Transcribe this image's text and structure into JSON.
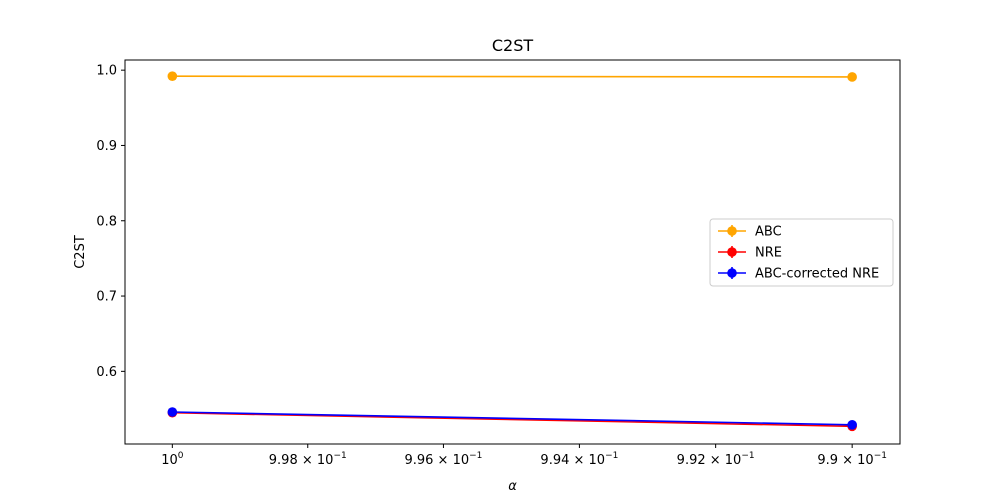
{
  "chart_data": {
    "type": "line",
    "title": "C2ST",
    "xlabel": "α",
    "ylabel": "C2ST",
    "x_scale": "log-reversed",
    "x": [
      1.0,
      0.99
    ],
    "xlim": [
      1.0007,
      0.9893
    ],
    "ylim": [
      0.5035,
      1.0135
    ],
    "x_ticks": [
      {
        "value": 1.0,
        "base": "10",
        "exp": "0"
      },
      {
        "value": 0.998,
        "base": "9.98 × 10",
        "exp": "−1"
      },
      {
        "value": 0.996,
        "base": "9.96 × 10",
        "exp": "−1"
      },
      {
        "value": 0.994,
        "base": "9.94 × 10",
        "exp": "−1"
      },
      {
        "value": 0.992,
        "base": "9.92 × 10",
        "exp": "−1"
      },
      {
        "value": 0.99,
        "base": "9.9 × 10",
        "exp": "−1"
      }
    ],
    "y_ticks": [
      {
        "value": 0.6,
        "label": "0.6"
      },
      {
        "value": 0.7,
        "label": "0.7"
      },
      {
        "value": 0.8,
        "label": "0.8"
      },
      {
        "value": 0.9,
        "label": "0.9"
      },
      {
        "value": 1.0,
        "label": "1.0"
      }
    ],
    "series": [
      {
        "name": "ABC",
        "color": "#ffa500",
        "values": [
          0.992,
          0.991
        ]
      },
      {
        "name": "NRE",
        "color": "#ff0000",
        "values": [
          0.545,
          0.527
        ]
      },
      {
        "name": "ABC-corrected NRE",
        "color": "#0000ff",
        "values": [
          0.546,
          0.529
        ]
      }
    ],
    "grid": false,
    "legend": "center-right"
  }
}
